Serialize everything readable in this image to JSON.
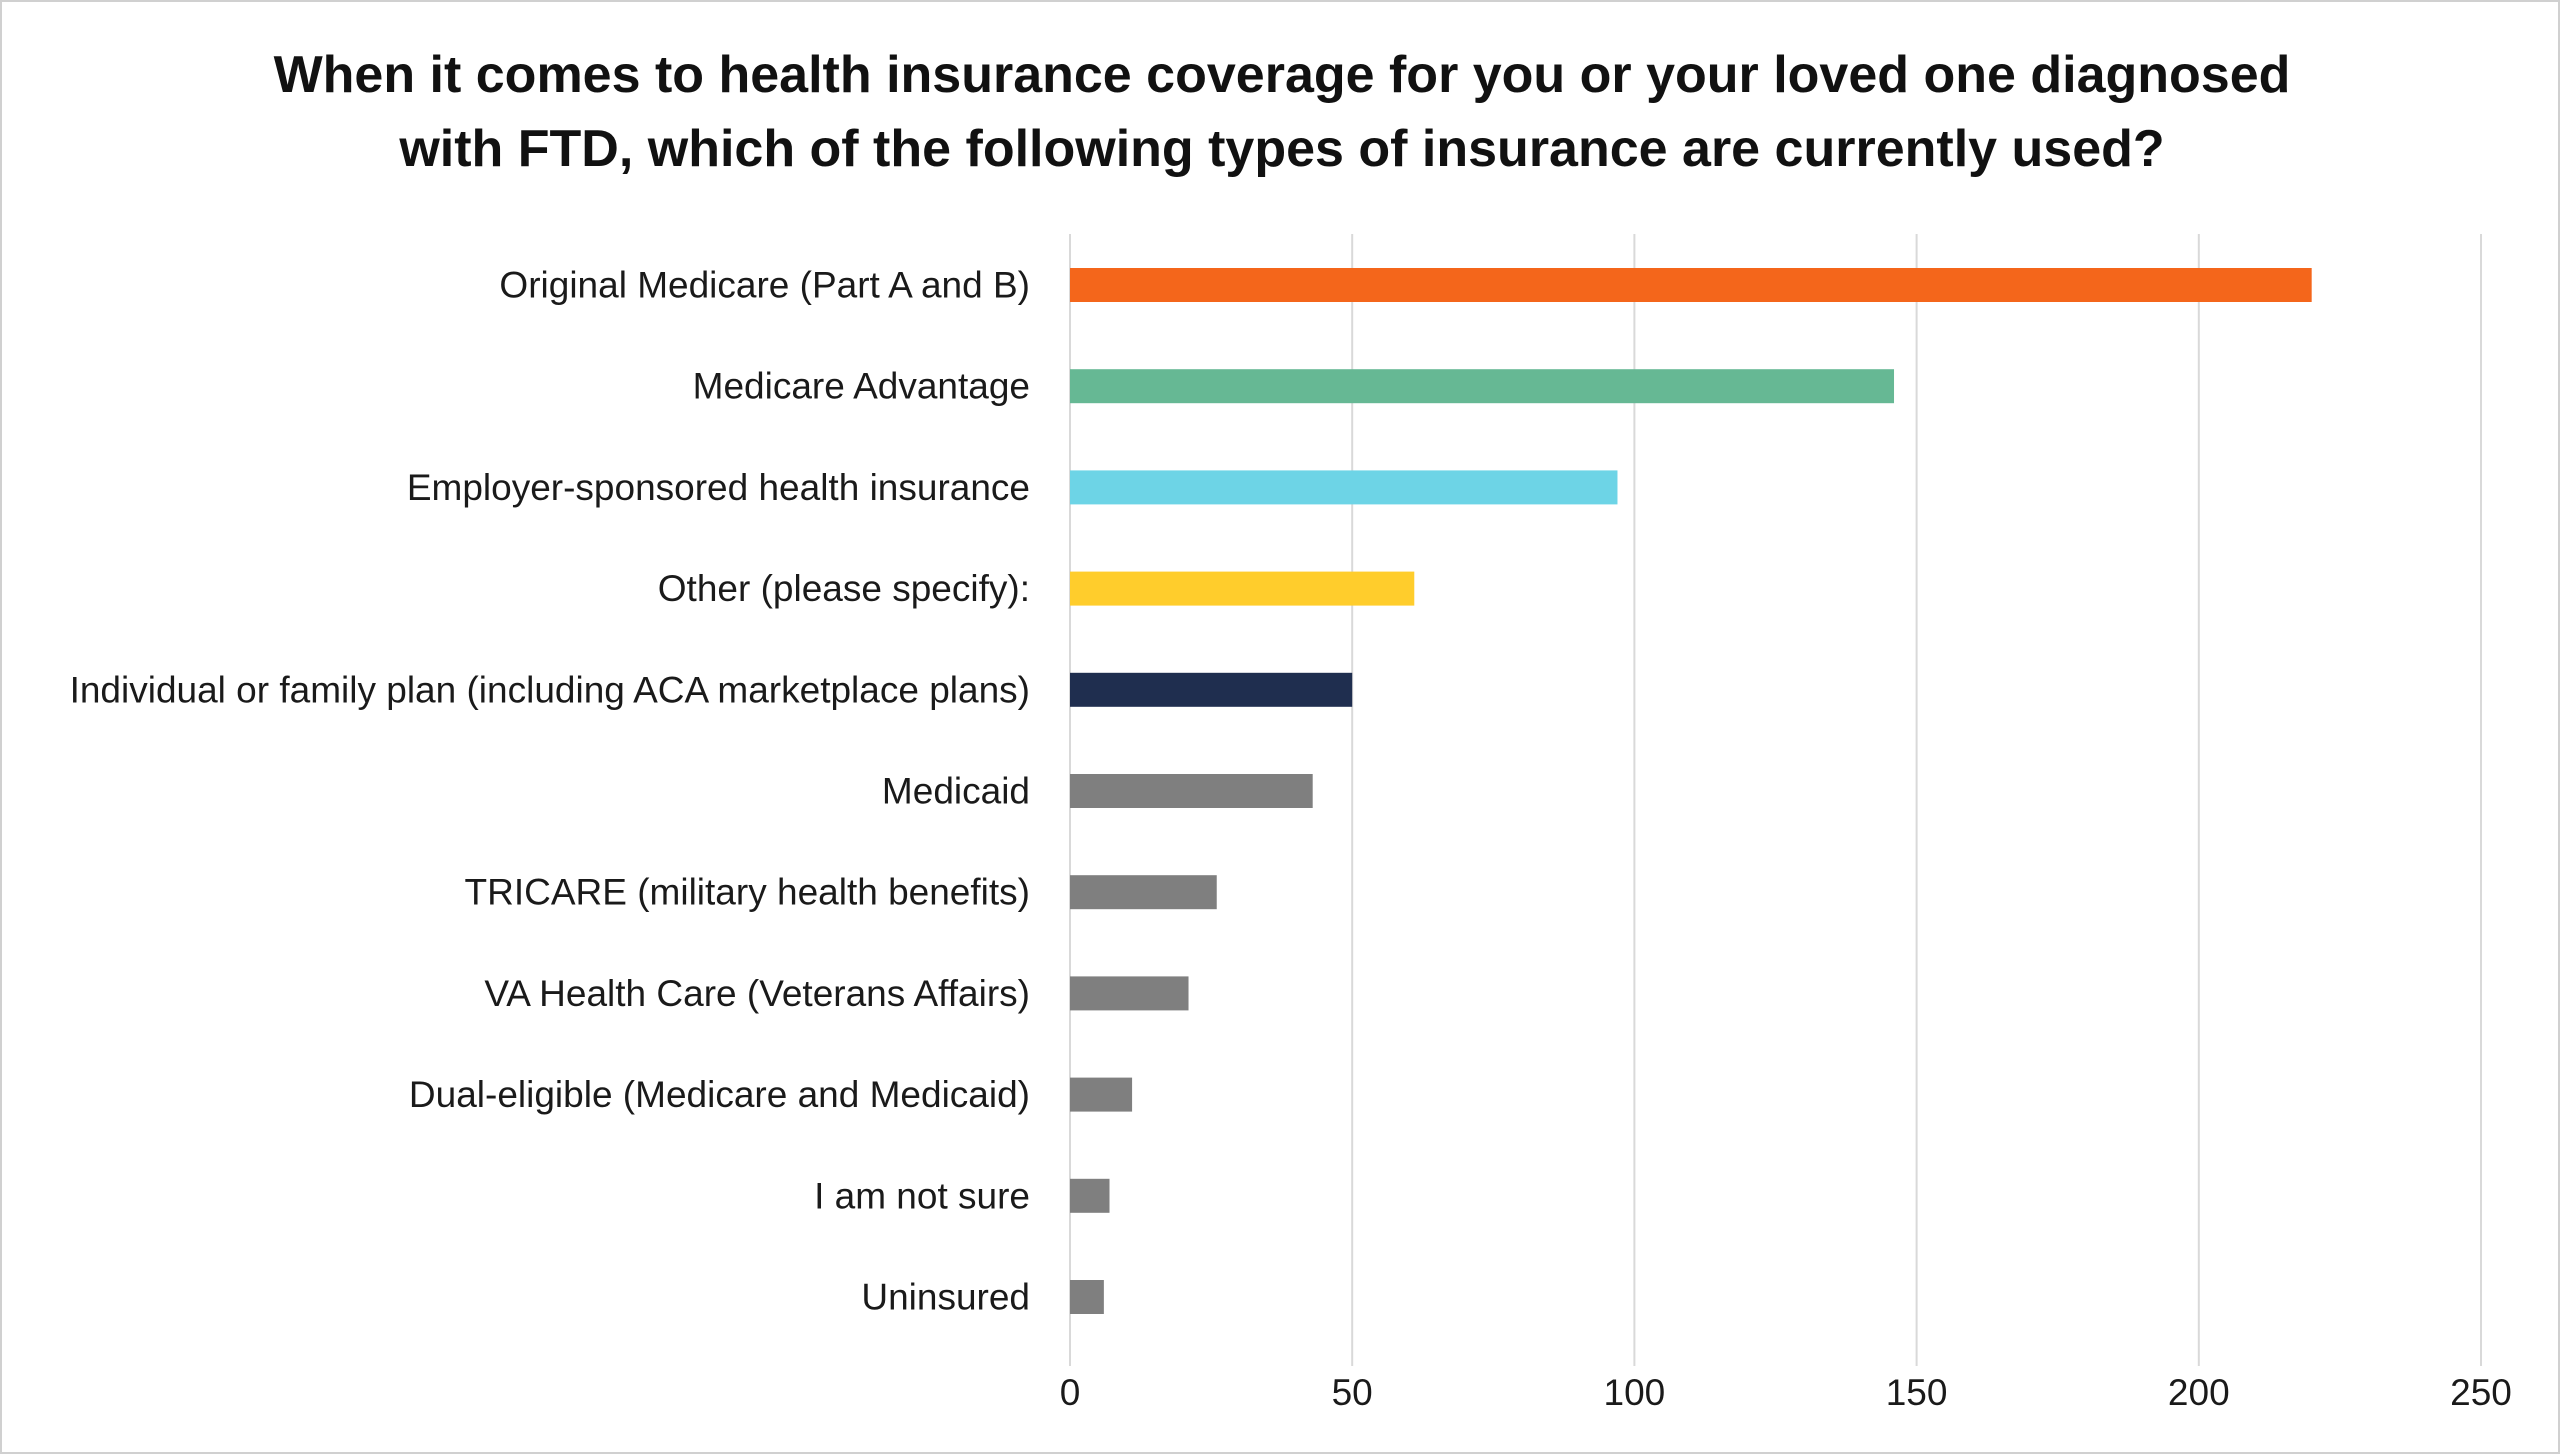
{
  "chart_data": {
    "type": "bar",
    "orientation": "horizontal",
    "title_lines": [
      "When it comes to health insurance coverage for you or your loved one diagnosed",
      "with FTD, which of the following types of insurance are currently used?"
    ],
    "categories": [
      "Original Medicare (Part A and B)",
      "Medicare Advantage",
      "Employer-sponsored health insurance",
      "Other (please specify):",
      "Individual or family plan (including ACA marketplace plans)",
      "Medicaid",
      "TRICARE (military health benefits)",
      "VA Health Care (Veterans Affairs)",
      "Dual-eligible (Medicare and Medicaid)",
      "I am not sure",
      "Uninsured"
    ],
    "values": [
      220,
      146,
      97,
      61,
      50,
      43,
      26,
      21,
      11,
      7,
      6
    ],
    "colors": [
      "#f4661b",
      "#66b894",
      "#6dd4e6",
      "#ffcd2c",
      "#1f2e4f",
      "#7f7f7f",
      "#7f7f7f",
      "#7f7f7f",
      "#7f7f7f",
      "#7f7f7f",
      "#7f7f7f"
    ],
    "xlim": [
      0,
      250
    ],
    "xticks": [
      "0",
      "50",
      "100",
      "150",
      "200",
      "250"
    ],
    "xtick_values": [
      0,
      50,
      100,
      150,
      200,
      250
    ],
    "grid": true,
    "legend": "none",
    "xlabel": "",
    "ylabel": ""
  }
}
